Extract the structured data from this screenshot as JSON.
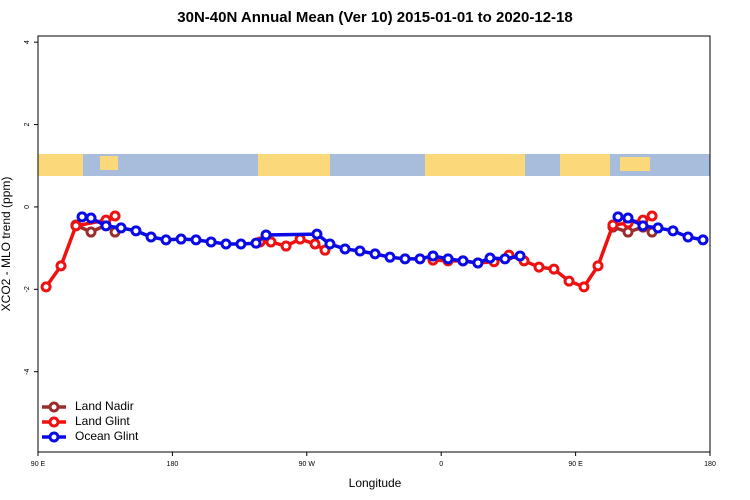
{
  "chart_data": {
    "type": "line",
    "title": "30N-40N Annual Mean (Ver 10)   2015-01-01 to 2020-12-18",
    "x_label": "Longitude",
    "y_label": "XCO2 - MLO trend (ppm)",
    "xlim": [
      90,
      540
    ],
    "ylim": [
      -5.95,
      4.15
    ],
    "xticks": [
      {
        "value": 90,
        "label": "90 E"
      },
      180,
      {
        "value": 270,
        "label": "90 W"
      },
      {
        "value": 360,
        "label": "0"
      },
      {
        "value": 450,
        "label": "90 E"
      },
      {
        "value": 540,
        "label": "180"
      }
    ],
    "yticks": [
      -4,
      -2,
      0,
      2,
      4
    ],
    "legend": "bottom-left",
    "series": [
      {
        "name": "Land Nadir",
        "color": "#9b2d2d",
        "x": [
          115.4,
          125.5,
          135.5,
          141.6,
          null,
          475.0,
          485.1,
          495.1,
          501.2
        ],
        "values": [
          -0.44,
          -0.61,
          -0.44,
          -0.61,
          null,
          -0.49,
          -0.61,
          -0.49,
          -0.61
        ]
      },
      {
        "name": "Land Glint",
        "color": "#ee1111",
        "x": [
          95.4,
          105.4,
          115.4,
          135.5,
          141.6,
          null,
          238.7,
          246.0,
          256.1,
          265.5,
          275.5,
          282.2,
          null,
          354.5,
          364.6,
          374.6,
          384.6,
          395.4,
          405.4,
          415.5,
          425.5,
          435.5,
          445.6,
          455.6,
          465.0,
          475.0,
          485.1,
          495.1,
          501.2
        ],
        "values": [
          -1.94,
          -1.43,
          -0.46,
          -0.32,
          -0.22,
          null,
          -0.85,
          -0.85,
          -0.95,
          -0.78,
          -0.9,
          -1.05,
          null,
          -1.29,
          -1.31,
          -1.31,
          -1.36,
          -1.33,
          -1.17,
          -1.31,
          -1.46,
          -1.51,
          -1.8,
          -1.94,
          -1.43,
          -0.44,
          -0.39,
          -0.32,
          -0.22
        ]
      },
      {
        "name": "Ocean Glint",
        "color": "#0a0ae6",
        "x": [
          119.5,
          125.5,
          135.5,
          145.6,
          155.6,
          165.7,
          175.7,
          185.8,
          195.8,
          205.9,
          215.9,
          225.9,
          236.0,
          242.7,
          276.8,
          285.5,
          295.6,
          305.6,
          315.7,
          325.7,
          335.8,
          345.8,
          354.5,
          364.6,
          374.6,
          384.6,
          392.7,
          402.7,
          412.8,
          null,
          478.4,
          485.1,
          495.1,
          505.2,
          515.2,
          525.3,
          535.3
        ],
        "values": [
          -0.24,
          -0.27,
          -0.46,
          -0.51,
          -0.58,
          -0.73,
          -0.8,
          -0.78,
          -0.8,
          -0.85,
          -0.9,
          -0.9,
          -0.88,
          -0.68,
          -0.66,
          -0.9,
          -1.02,
          -1.07,
          -1.14,
          -1.22,
          -1.26,
          -1.26,
          -1.19,
          -1.26,
          -1.31,
          -1.36,
          -1.24,
          -1.26,
          -1.19,
          null,
          -0.24,
          -0.27,
          -0.46,
          -0.51,
          -0.58,
          -0.73,
          -0.8
        ]
      }
    ]
  }
}
